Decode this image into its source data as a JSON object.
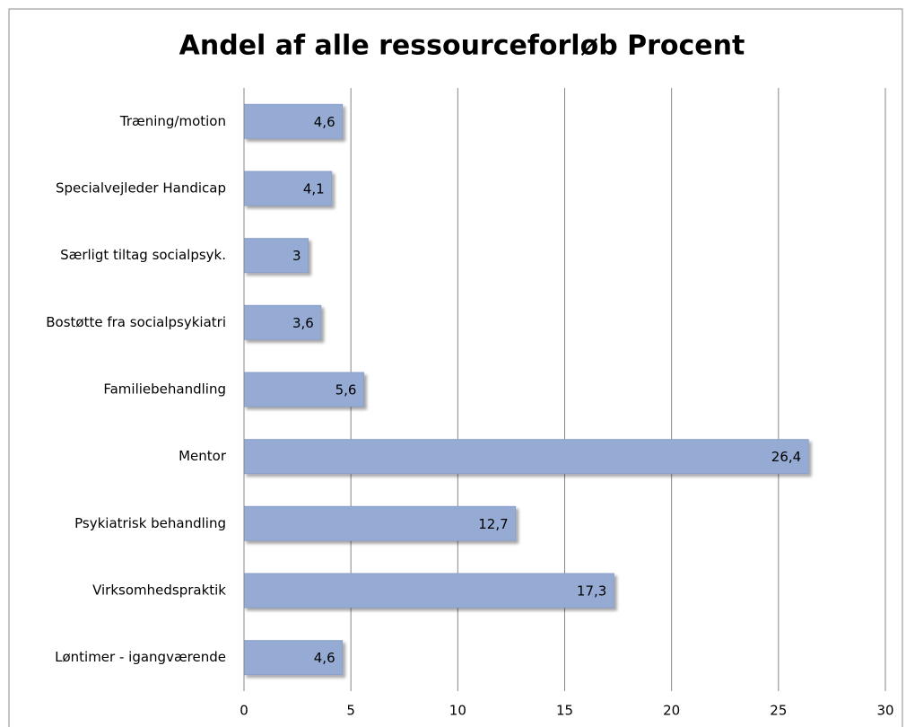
{
  "chart_data": {
    "type": "barh",
    "title": "Andel af alle ressourceforløb Procent",
    "categories": [
      "Træning/motion",
      "Specialvejleder Handicap",
      "Særligt tiltag socialpsyk.",
      "Bostøtte fra socialpsykiatri",
      "Familiebehandling",
      "Mentor",
      "Psykiatrisk behandling",
      "Virksomhedspraktik",
      "Løntimer - igangværende"
    ],
    "values": [
      4.6,
      4.1,
      3,
      3.6,
      5.6,
      26.4,
      12.7,
      17.3,
      4.6
    ],
    "value_labels": [
      "4,6",
      "4,1",
      "3",
      "3,6",
      "5,6",
      "26,4",
      "12,7",
      "17,3",
      "4,6"
    ],
    "color": "#95abd4",
    "xlim": [
      0,
      30
    ],
    "xticks": [
      0,
      5,
      10,
      15,
      20,
      25,
      30
    ],
    "grid": true
  }
}
